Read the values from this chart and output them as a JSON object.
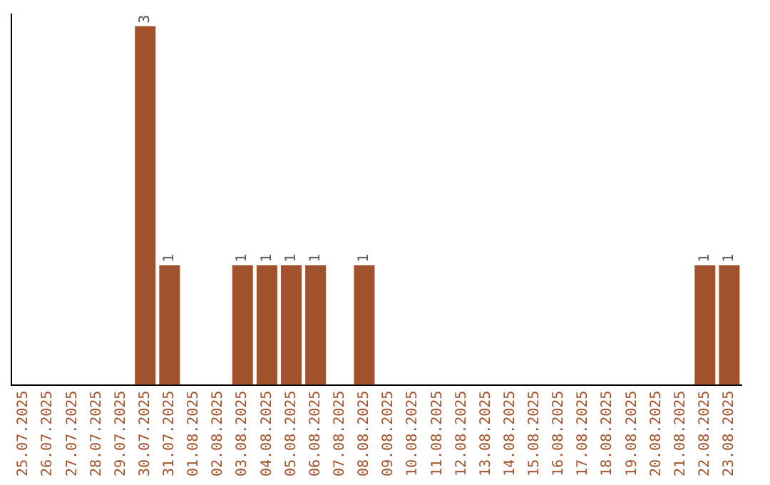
{
  "chart_data": {
    "type": "bar",
    "categories": [
      "25.07.2025",
      "26.07.2025",
      "27.07.2025",
      "28.07.2025",
      "29.07.2025",
      "30.07.2025",
      "31.07.2025",
      "01.08.2025",
      "02.08.2025",
      "03.08.2025",
      "04.08.2025",
      "05.08.2025",
      "06.08.2025",
      "07.08.2025",
      "08.08.2025",
      "09.08.2025",
      "10.08.2025",
      "11.08.2025",
      "12.08.2025",
      "13.08.2025",
      "14.08.2025",
      "15.08.2025",
      "16.08.2025",
      "17.08.2025",
      "18.08.2025",
      "19.08.2025",
      "20.08.2025",
      "21.08.2025",
      "22.08.2025",
      "23.08.2025"
    ],
    "values": [
      null,
      null,
      null,
      null,
      null,
      3,
      1,
      null,
      null,
      1,
      1,
      1,
      1,
      null,
      1,
      null,
      null,
      null,
      null,
      null,
      null,
      null,
      null,
      null,
      null,
      null,
      null,
      null,
      1,
      1
    ],
    "color": "#a0522d",
    "ylim": [
      0,
      3.1
    ],
    "tick_labels": "x",
    "grid": false,
    "legend": false,
    "data_labels": true
  }
}
